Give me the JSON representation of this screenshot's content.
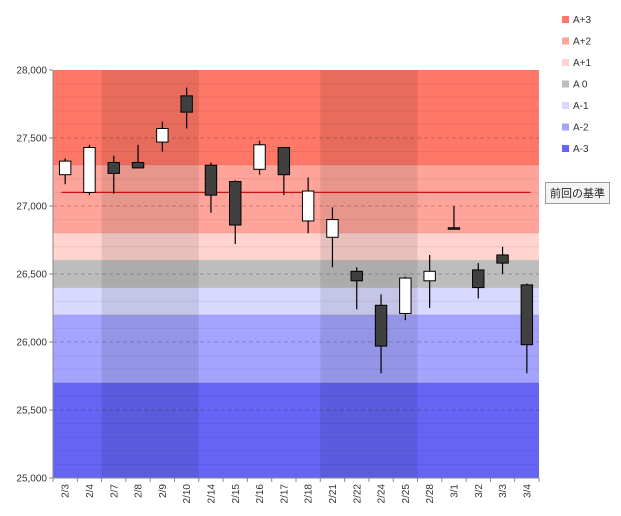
{
  "chart_data": {
    "type": "candlestick",
    "y_ticks": [
      "25,000",
      "25,500",
      "26,000",
      "26,500",
      "27,000",
      "27,500",
      "28,000"
    ],
    "ylim": [
      25000,
      28000
    ],
    "categories": [
      "2/3",
      "2/4",
      "2/7",
      "2/8",
      "2/9",
      "2/10",
      "2/14",
      "2/15",
      "2/16",
      "2/17",
      "2/18",
      "2/21",
      "2/22",
      "2/24",
      "2/25",
      "2/28",
      "3/1",
      "3/2",
      "3/3",
      "3/4"
    ],
    "candles": [
      {
        "x": "2/3",
        "open": 27230,
        "close": 27330,
        "high": 27350,
        "low": 27160
      },
      {
        "x": "2/4",
        "open": 27100,
        "close": 27430,
        "high": 27450,
        "low": 27080
      },
      {
        "x": "2/7",
        "open": 27320,
        "close": 27240,
        "high": 27370,
        "low": 27090
      },
      {
        "x": "2/8",
        "open": 27320,
        "close": 27280,
        "high": 27450,
        "low": 27280
      },
      {
        "x": "2/9",
        "open": 27470,
        "close": 27570,
        "high": 27620,
        "low": 27400
      },
      {
        "x": "2/10",
        "open": 27810,
        "close": 27690,
        "high": 27870,
        "low": 27570
      },
      {
        "x": "2/14",
        "open": 27300,
        "close": 27080,
        "high": 27320,
        "low": 26950
      },
      {
        "x": "2/15",
        "open": 27180,
        "close": 26860,
        "high": 27190,
        "low": 26720
      },
      {
        "x": "2/16",
        "open": 27270,
        "close": 27450,
        "high": 27480,
        "low": 27230
      },
      {
        "x": "2/17",
        "open": 27430,
        "close": 27230,
        "high": 27430,
        "low": 27080
      },
      {
        "x": "2/18",
        "open": 26890,
        "close": 27110,
        "high": 27210,
        "low": 26800
      },
      {
        "x": "2/21",
        "open": 26770,
        "close": 26900,
        "high": 26990,
        "low": 26550
      },
      {
        "x": "2/22",
        "open": 26520,
        "close": 26450,
        "high": 26550,
        "low": 26240
      },
      {
        "x": "2/24",
        "open": 26270,
        "close": 25970,
        "high": 26350,
        "low": 25770
      },
      {
        "x": "2/25",
        "open": 26210,
        "close": 26470,
        "high": 26480,
        "low": 26160
      },
      {
        "x": "2/28",
        "open": 26450,
        "close": 26520,
        "high": 26640,
        "low": 26250
      },
      {
        "x": "3/1",
        "open": 26840,
        "close": 26830,
        "high": 27000,
        "low": 26830
      },
      {
        "x": "3/2",
        "open": 26530,
        "close": 26400,
        "high": 26580,
        "low": 26320
      },
      {
        "x": "3/3",
        "open": 26640,
        "close": 26580,
        "high": 26700,
        "low": 26500
      },
      {
        "x": "3/4",
        "open": 26420,
        "close": 25980,
        "high": 26430,
        "low": 25770
      }
    ],
    "bands": [
      {
        "name": "A+3",
        "from": 27300,
        "to": 28000,
        "color": "#ff7766"
      },
      {
        "name": "A+2",
        "from": 26800,
        "to": 27300,
        "color": "#ffa49a"
      },
      {
        "name": "A+1",
        "from": 26600,
        "to": 26800,
        "color": "#ffd3ce"
      },
      {
        "name": "A 0",
        "from": 26400,
        "to": 26600,
        "color": "#bdbdbd"
      },
      {
        "name": "A-1",
        "from": 26200,
        "to": 26400,
        "color": "#d9d9ff"
      },
      {
        "name": "A-2",
        "from": 25700,
        "to": 26200,
        "color": "#a4a4ff"
      },
      {
        "name": "A-3",
        "from": 25000,
        "to": 25700,
        "color": "#6565f5"
      }
    ],
    "shaded_week_ranges": [
      [
        "2/7",
        "2/10"
      ],
      [
        "2/21",
        "2/25"
      ]
    ],
    "reference_line": {
      "label": "前回の基準",
      "value": 27100,
      "color": "#cc1111"
    },
    "legend_position": "right",
    "grid": true,
    "up_color": "#ffffff",
    "down_color": "#404040"
  }
}
